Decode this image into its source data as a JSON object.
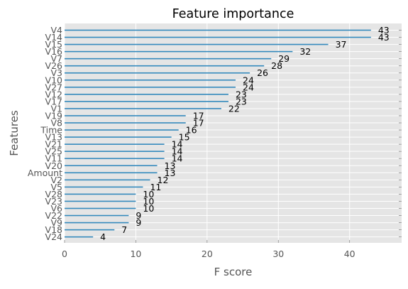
{
  "chart_data": {
    "type": "bar",
    "orientation": "horizontal",
    "title": "Feature importance",
    "xlabel": "F score",
    "ylabel": "Features",
    "xlim": [
      0,
      47.3
    ],
    "xticks": [
      0,
      10,
      20,
      30,
      40
    ],
    "grid": true,
    "bar_color": "#348abd",
    "background": "#e5e5e5",
    "categories": [
      "V4",
      "V14",
      "V15",
      "V16",
      "V7",
      "V26",
      "V3",
      "V10",
      "V27",
      "V12",
      "V17",
      "V1",
      "V19",
      "V8",
      "Time",
      "V13",
      "V21",
      "V25",
      "V11",
      "V20",
      "Amount",
      "V2",
      "V5",
      "V28",
      "V23",
      "V6",
      "V22",
      "V9",
      "V18",
      "V24"
    ],
    "values": [
      43,
      43,
      37,
      32,
      29,
      28,
      26,
      24,
      24,
      23,
      23,
      22,
      17,
      17,
      16,
      15,
      14,
      14,
      14,
      13,
      13,
      12,
      11,
      10,
      10,
      10,
      9,
      9,
      7,
      4
    ]
  }
}
